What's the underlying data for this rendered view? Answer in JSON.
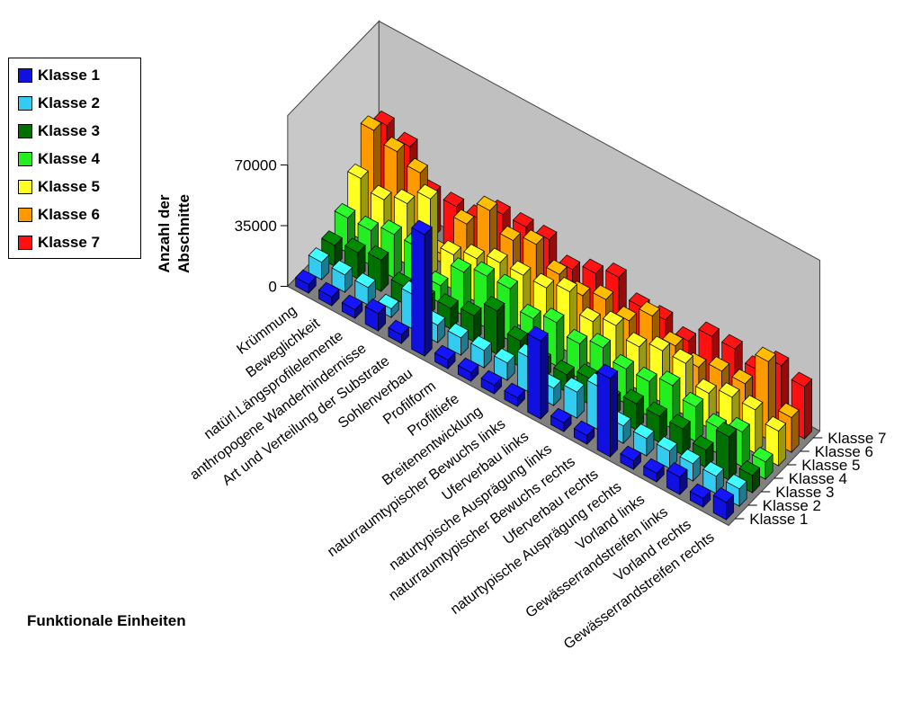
{
  "chart_data": {
    "type": "bar",
    "subtype": "3d-grouped",
    "title": "",
    "xlabel": "Funktionale Einheiten",
    "ylabel": "Anzahl der Abschnitte",
    "ylim": [
      0,
      70000
    ],
    "yticks": [
      "0",
      "35000",
      "70000"
    ],
    "categories": [
      "Krümmung",
      "Beweglichkeit",
      "natürl.Längsprofilelemente",
      "anthropogene Wanderhindernisse",
      "Art und Verteilung der Substrate",
      "Sohlenverbau",
      "Profilform",
      "Profiltiefe",
      "Breitenentwicklung",
      "naturraumtypischer Bewuchs links",
      "Uferverbau links",
      "naturtypische Ausprägung links",
      "naturraumtypischer Bewuchs rechts",
      "Uferverbau rechts",
      "naturtypische Ausprägung rechts",
      "Vorland links",
      "Gewässerrandstreifen links",
      "Vorland rechts",
      "Gewässerrandstreifen rechts"
    ],
    "series": [
      {
        "name": "Klasse 1",
        "color": "#1010e0",
        "values": [
          5000,
          5000,
          5000,
          10000,
          5000,
          70000,
          5000,
          5000,
          5000,
          5000,
          45000,
          5000,
          5000,
          45000,
          5000,
          5000,
          10000,
          5000,
          10000
        ]
      },
      {
        "name": "Klasse 2",
        "color": "#33ccf0",
        "values": [
          10000,
          10000,
          10000,
          5000,
          20000,
          10000,
          10000,
          10000,
          10000,
          20000,
          10000,
          15000,
          25000,
          10000,
          10000,
          10000,
          10000,
          10000,
          10000
        ]
      },
      {
        "name": "Klasse 3",
        "color": "#007000",
        "values": [
          12000,
          15000,
          18000,
          10000,
          10000,
          12000,
          15000,
          25000,
          15000,
          10000,
          10000,
          15000,
          10000,
          15000,
          15000,
          15000,
          10000,
          25000,
          10000
        ]
      },
      {
        "name": "Klasse 4",
        "color": "#22ee22",
        "values": [
          20000,
          20000,
          25000,
          25000,
          10000,
          25000,
          30000,
          30000,
          20000,
          25000,
          20000,
          25000,
          20000,
          20000,
          25000,
          20000,
          15000,
          20000,
          10000
        ]
      },
      {
        "name": "Klasse 5",
        "color": "#ffff20",
        "values": [
          35000,
          30000,
          35000,
          45000,
          20000,
          25000,
          30000,
          30000,
          30000,
          35000,
          25000,
          30000,
          25000,
          30000,
          30000,
          20000,
          25000,
          25000,
          20000
        ]
      },
      {
        "name": "Klasse 6",
        "color": "#ff9900",
        "values": [
          55000,
          50000,
          45000,
          5000,
          30000,
          45000,
          35000,
          40000,
          30000,
          25000,
          30000,
          25000,
          35000,
          25000,
          20000,
          25000,
          25000,
          45000,
          20000
        ]
      },
      {
        "name": "Klasse 7",
        "color": "#ff1010",
        "values": [
          50000,
          45000,
          25000,
          25000,
          25000,
          35000,
          35000,
          35000,
          25000,
          30000,
          35000,
          25000,
          25000,
          20000,
          30000,
          30000,
          25000,
          35000,
          30000
        ]
      }
    ],
    "legend_position": "left",
    "grid": false
  }
}
